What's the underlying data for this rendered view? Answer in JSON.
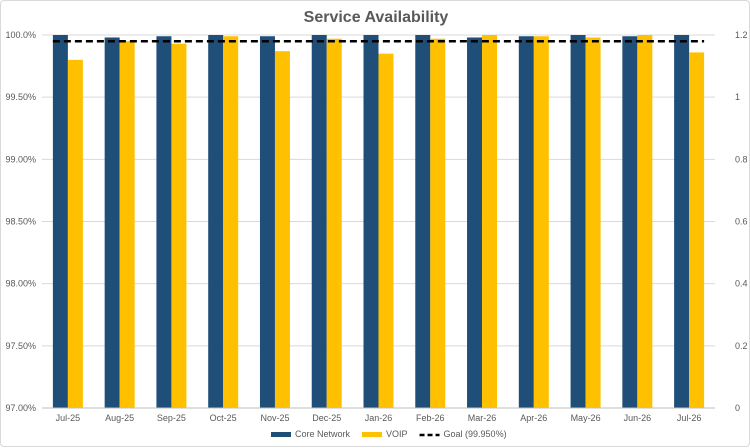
{
  "chart_data": {
    "type": "bar",
    "title": "Service Availability",
    "categories": [
      "Jul-25",
      "Aug-25",
      "Sep-25",
      "Oct-25",
      "Nov-25",
      "Dec-25",
      "Jan-26",
      "Feb-26",
      "Mar-26",
      "Apr-26",
      "May-26",
      "Jun-26",
      "Jul-26"
    ],
    "series": [
      {
        "name": "Core Network",
        "color": "#1f4e79",
        "axis": "left",
        "values": [
          100.0,
          99.98,
          99.99,
          100.0,
          99.99,
          100.0,
          100.0,
          100.0,
          99.98,
          99.99,
          100.0,
          99.99,
          100.0
        ]
      },
      {
        "name": "VOIP",
        "color": "#ffc000",
        "axis": "left",
        "values": [
          99.8,
          99.95,
          99.93,
          99.99,
          99.87,
          99.97,
          99.85,
          99.97,
          100.0,
          99.99,
          99.98,
          100.0,
          99.86
        ]
      }
    ],
    "goal": {
      "name": "Goal (99.950%)",
      "value": 99.95,
      "color": "#000000",
      "style": "dashed"
    },
    "ylim": [
      97.0,
      100.0
    ],
    "yticks": [
      "97.00%",
      "97.50%",
      "98.00%",
      "98.50%",
      "99.00%",
      "99.50%",
      "100.0%"
    ],
    "y2lim": [
      0,
      1.2
    ],
    "y2ticks": [
      "0",
      "0.2",
      "0.4",
      "0.6",
      "0.8",
      "1",
      "1.2"
    ],
    "grid": true,
    "legend_position": "bottom"
  }
}
